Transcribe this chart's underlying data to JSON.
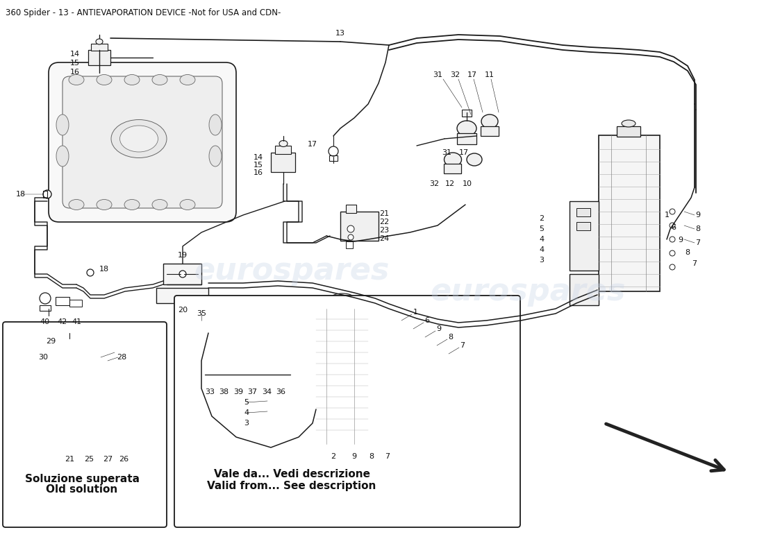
{
  "title": "360 Spider - 13 - ANTIEVAPORATION DEVICE -Not for USA and CDN-",
  "background_color": "#ffffff",
  "watermark_text": "eurospares",
  "watermark_color": "#c8d4e8",
  "watermark_alpha": 0.35,
  "line_color": "#1a1a1a",
  "box1_label_it": "Soluzione superata",
  "box1_label_en": "Old solution",
  "box2_label_it": "Vale da... Vedi descrizione",
  "box2_label_en": "Valid from... See description"
}
